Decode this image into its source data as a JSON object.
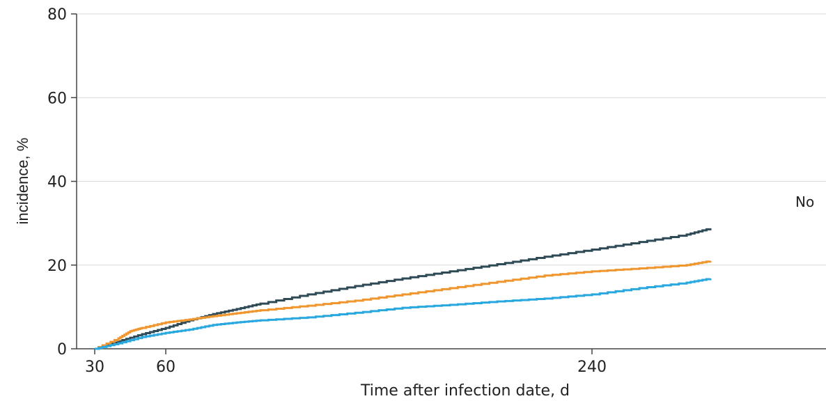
{
  "chart_data": {
    "type": "line",
    "title": "",
    "xlabel": "Time after infection date, d",
    "ylabel": "incidence, %",
    "xlim": [
      30,
      290
    ],
    "ylim": [
      0,
      80
    ],
    "x_ticks": [
      30,
      60,
      240
    ],
    "y_ticks": [
      0,
      20,
      40,
      60,
      80
    ],
    "grid": "horizontal",
    "annotation": "No",
    "series": [
      {
        "color": "#2e4a56",
        "x": [
          30,
          40,
          50,
          60,
          70,
          80,
          90,
          100,
          120,
          140,
          160,
          180,
          200,
          220,
          240,
          260,
          280,
          290
        ],
        "y": [
          0,
          1.8,
          3.5,
          5.0,
          6.8,
          8.3,
          9.5,
          10.8,
          13.0,
          15.0,
          16.8,
          18.5,
          20.2,
          22.0,
          23.7,
          25.5,
          27.3,
          28.8
        ]
      },
      {
        "color": "#f0962e",
        "x": [
          30,
          40,
          45,
          50,
          60,
          70,
          80,
          90,
          100,
          120,
          140,
          160,
          180,
          200,
          220,
          240,
          260,
          280,
          290
        ],
        "y": [
          0,
          2.5,
          4.2,
          5.0,
          6.3,
          7.0,
          7.8,
          8.5,
          9.2,
          10.3,
          11.5,
          13.0,
          14.5,
          16.0,
          17.5,
          18.5,
          19.2,
          20.0,
          21.0
        ]
      },
      {
        "color": "#29a8e0",
        "x": [
          30,
          40,
          50,
          60,
          70,
          80,
          90,
          100,
          120,
          140,
          160,
          180,
          200,
          220,
          240,
          260,
          280,
          290
        ],
        "y": [
          0,
          1.3,
          2.8,
          3.8,
          4.6,
          5.7,
          6.3,
          6.8,
          7.5,
          8.6,
          9.8,
          10.5,
          11.3,
          12.0,
          13.0,
          14.5,
          15.8,
          16.8
        ]
      }
    ]
  }
}
